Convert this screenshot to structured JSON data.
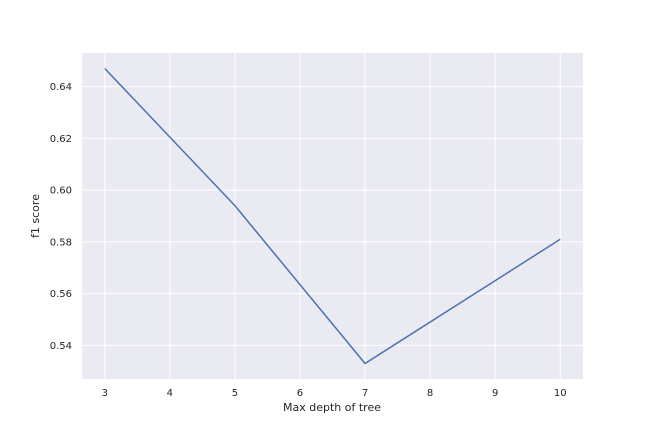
{
  "chart_data": {
    "type": "line",
    "title": "",
    "xlabel": "Max depth of tree",
    "ylabel": "f1 score",
    "x": [
      3,
      5,
      7,
      10
    ],
    "series": [
      {
        "values": [
          0.647,
          0.594,
          0.533,
          0.581
        ],
        "color": "#4c72b0"
      }
    ],
    "xlim": [
      2.65,
      10.35
    ],
    "ylim": [
      0.527,
      0.653
    ],
    "xticks": [
      3,
      4,
      5,
      6,
      7,
      8,
      9,
      10
    ],
    "yticks": [
      0.54,
      0.56,
      0.58,
      0.6,
      0.62,
      0.64
    ],
    "xtick_labels": [
      "3",
      "4",
      "5",
      "6",
      "7",
      "8",
      "9",
      "10"
    ],
    "ytick_labels": [
      "0.54",
      "0.56",
      "0.58",
      "0.60",
      "0.62",
      "0.64"
    ],
    "grid": true,
    "background_color": "#eaeaf2",
    "grid_color": "#ffffff"
  }
}
